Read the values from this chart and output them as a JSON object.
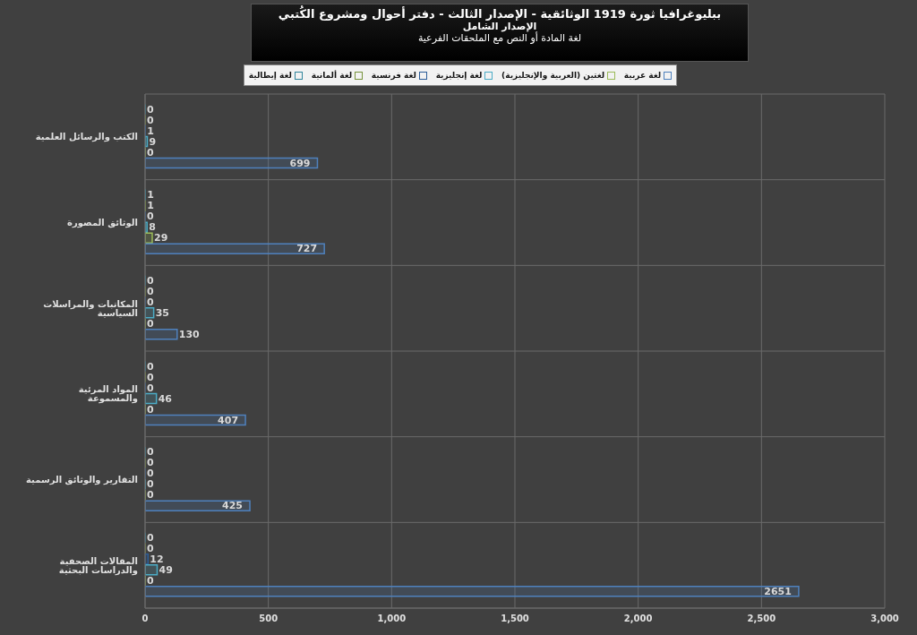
{
  "chart_data": {
    "type": "bar",
    "orientation": "horizontal",
    "title": "ببليوغرافيا ثورة 1919 الوثائقية - الإصدار الثالث - دفتر أحوال ومشروع الكُتبي",
    "subtitle": "الإصدار الشامل",
    "annotations": [
      "لغة المادة أو النص مع الملحقات الفرعية"
    ],
    "categories": [
      "الكتب والرسائل العلمية",
      "الوثائق المصورة",
      "المكاتبات والمراسلات السياسية",
      "المواد المرئية والمسموعة",
      "التقارير والوثائق الرسمية",
      "المقالات الصحفية والدراسات البحثية"
    ],
    "series": [
      {
        "name": "لغة إيطالية",
        "color": "#31859c",
        "values": [
          0,
          1,
          0,
          0,
          0,
          0
        ]
      },
      {
        "name": "لغة ألمانية",
        "color": "#77933c",
        "values": [
          0,
          1,
          0,
          0,
          0,
          0
        ]
      },
      {
        "name": "لغة فرنسية",
        "color": "#2c5d98",
        "values": [
          1,
          0,
          0,
          0,
          0,
          12
        ]
      },
      {
        "name": "لغة إنجليزية",
        "color": "#4bacc6",
        "values": [
          9,
          8,
          35,
          46,
          0,
          49
        ]
      },
      {
        "name": "لغتين (العربية والإنجليزية)",
        "color": "#9bbb59",
        "values": [
          0,
          29,
          0,
          0,
          0,
          0
        ]
      },
      {
        "name": "لغة عربية",
        "color": "#4f81bd",
        "values": [
          699,
          727,
          130,
          407,
          425,
          2651
        ]
      }
    ],
    "xlim": [
      0,
      3000
    ],
    "xticks": [
      0,
      500,
      {
        "value": 1000,
        "label": "1,000"
      },
      {
        "value": 1500,
        "label": "1,500"
      },
      {
        "value": 2000,
        "label": "2,000"
      },
      {
        "value": 2500,
        "label": "2,500"
      },
      {
        "value": 3000,
        "label": "3,000"
      }
    ],
    "grid": true,
    "legend": "top",
    "data_labels": true
  }
}
